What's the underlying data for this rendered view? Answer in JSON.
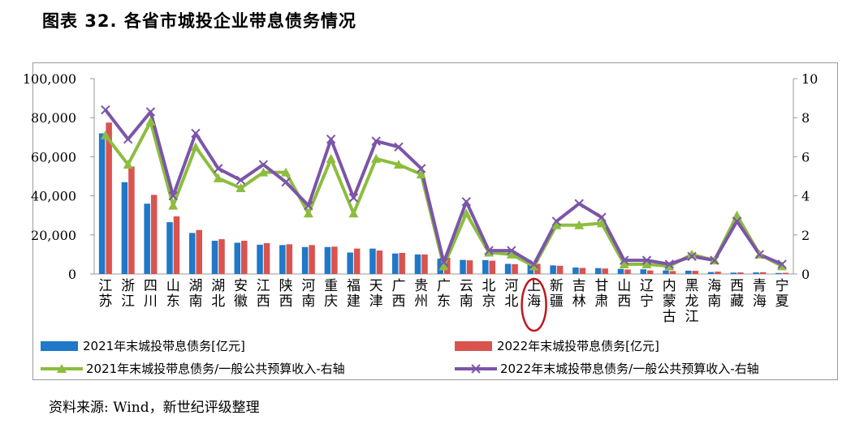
{
  "title": "图表 32. 各省市城投企业带息债务情况",
  "source": "资料来源: Wind，新世纪评级整理",
  "chart_data": {
    "type": "bar",
    "categories": [
      "江苏",
      "浙江",
      "四川",
      "山东",
      "湖南",
      "湖北",
      "安徽",
      "江西",
      "陕西",
      "河南",
      "重庆",
      "福建",
      "天津",
      "广西",
      "贵州",
      "广东",
      "云南",
      "北京",
      "河北",
      "上海",
      "新疆",
      "吉林",
      "甘肃",
      "山西",
      "辽宁",
      "内蒙古",
      "黑龙江",
      "海南",
      "西藏",
      "青海",
      "宁夏"
    ],
    "series": [
      {
        "name": "2021年末城投带息债务[亿元]",
        "axis": "left",
        "kind": "bar",
        "color": "#1f78c8",
        "values": [
          72000,
          47000,
          36000,
          26500,
          21000,
          17000,
          16000,
          15000,
          14800,
          13800,
          13800,
          11000,
          13000,
          10500,
          10000,
          7800,
          7200,
          7100,
          5200,
          5000,
          4400,
          3300,
          3000,
          2600,
          2400,
          1800,
          1700,
          1000,
          700,
          800,
          500
        ]
      },
      {
        "name": "2022年末城投带息债务[亿元]",
        "axis": "left",
        "kind": "bar",
        "color": "#d9534f",
        "values": [
          77500,
          55000,
          40500,
          29500,
          22500,
          17800,
          17000,
          15800,
          15200,
          14800,
          14000,
          13000,
          12000,
          10800,
          10000,
          8300,
          7000,
          6800,
          5000,
          5200,
          4200,
          3100,
          2800,
          2300,
          1800,
          1500,
          1600,
          1200,
          800,
          900,
          600
        ]
      },
      {
        "name": "2021年末城投带息债务/一般公共预算收入-右轴",
        "axis": "right",
        "kind": "line",
        "color": "#8cbd3f",
        "values": [
          7.1,
          5.6,
          7.8,
          3.5,
          6.5,
          4.9,
          4.4,
          5.2,
          5.2,
          3.1,
          5.9,
          3.1,
          5.9,
          5.6,
          5.1,
          0.4,
          3.1,
          1.1,
          1.0,
          0.4,
          2.5,
          2.5,
          2.6,
          0.5,
          0.5,
          0.4,
          1.0,
          0.7,
          3.0,
          1.0,
          0.4
        ]
      },
      {
        "name": "2022年末城投带息债务/一般公共预算收入-右轴",
        "axis": "right",
        "kind": "line",
        "color": "#7b55a8",
        "values": [
          8.4,
          6.9,
          8.3,
          4.0,
          7.2,
          5.4,
          4.8,
          5.6,
          4.7,
          3.5,
          6.9,
          3.9,
          6.8,
          6.5,
          5.4,
          0.6,
          3.7,
          1.2,
          1.2,
          0.5,
          2.7,
          3.6,
          2.9,
          0.7,
          0.7,
          0.5,
          0.9,
          0.7,
          2.7,
          1.0,
          0.5
        ]
      }
    ],
    "left_axis": {
      "ylim": [
        0,
        100000
      ],
      "ticks": [
        "0",
        "20,000",
        "40,000",
        "60,000",
        "80,000",
        "100,000"
      ]
    },
    "right_axis": {
      "ylim": [
        0,
        10
      ],
      "ticks": [
        "0",
        "2",
        "4",
        "6",
        "8",
        "10"
      ]
    },
    "highlight_category": "上海",
    "grid": false,
    "legend_position": "bottom"
  }
}
